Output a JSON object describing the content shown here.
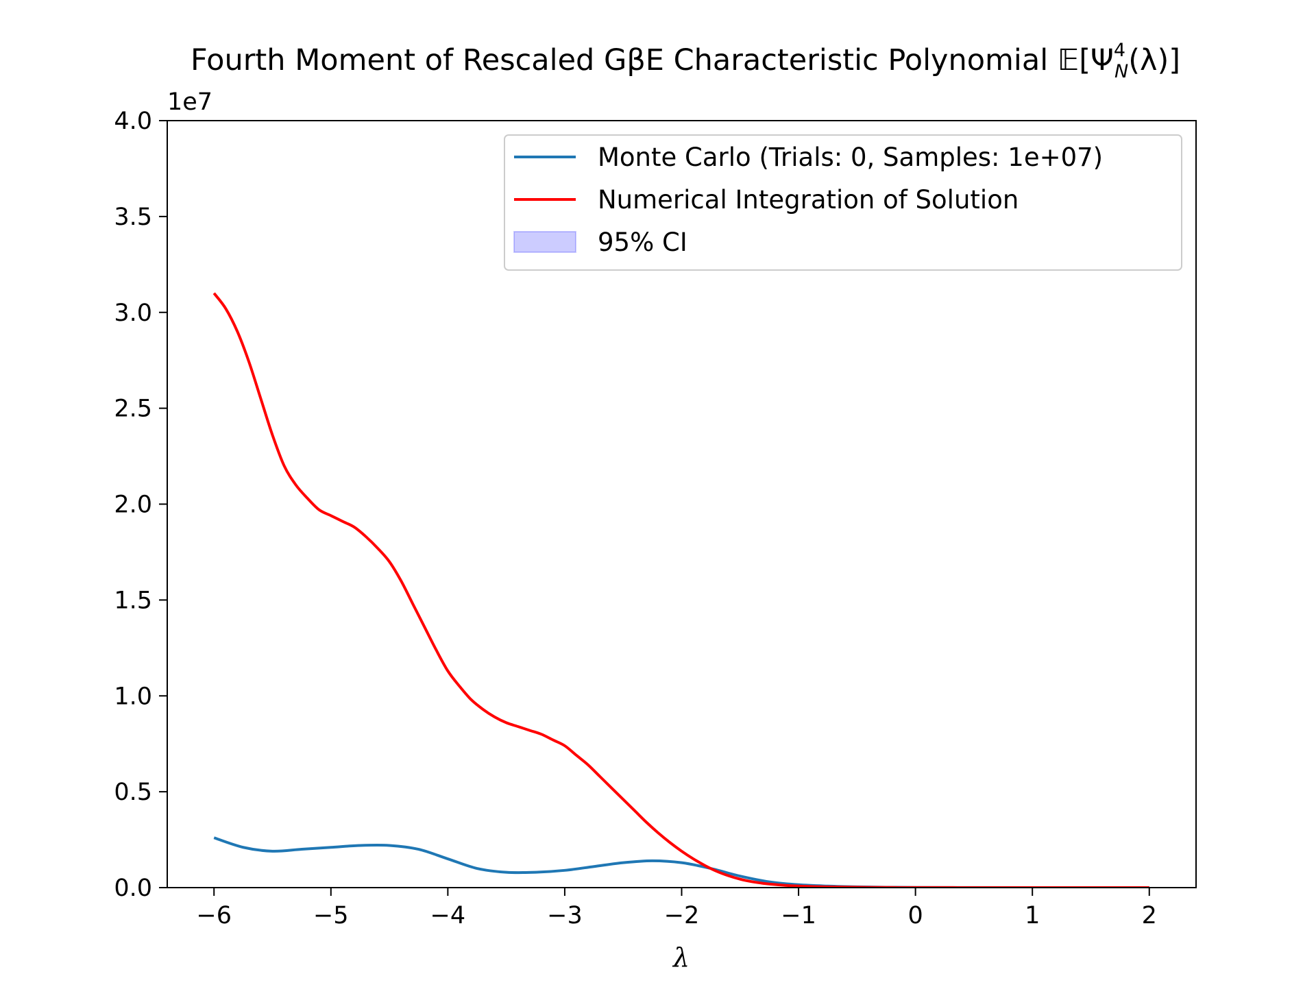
{
  "chart_data": {
    "type": "line",
    "title": "Fourth Moment of Rescaled GβE Characteristic Polynomial 𝔼[Ψ",
    "title_sup": "4",
    "title_sub": "N",
    "title_tail": "(λ)]",
    "xlabel": "λ",
    "ylabel": "",
    "y_offset_label": "1e7",
    "xlim": [
      -6.4,
      2.4
    ],
    "ylim": [
      0,
      40000000
    ],
    "x_ticks": [
      -6,
      -5,
      -4,
      -3,
      -2,
      -1,
      0,
      1,
      2
    ],
    "x_tick_labels": [
      "−6",
      "−5",
      "−4",
      "−3",
      "−2",
      "−1",
      "0",
      "1",
      "2"
    ],
    "y_ticks": [
      0,
      5000000,
      10000000,
      15000000,
      20000000,
      25000000,
      30000000,
      35000000,
      40000000
    ],
    "y_tick_labels": [
      "0.0",
      "0.5",
      "1.0",
      "1.5",
      "2.0",
      "2.5",
      "3.0",
      "3.5",
      "4.0"
    ],
    "grid": false,
    "legend_position": "top-right",
    "series": [
      {
        "name": "Monte Carlo (Trials: 0, Samples: 1e+07)",
        "color": "#1f77b4",
        "x": [
          -6,
          -5.75,
          -5.5,
          -5.25,
          -5,
          -4.75,
          -4.5,
          -4.25,
          -4,
          -3.75,
          -3.5,
          -3.25,
          -3,
          -2.75,
          -2.5,
          -2.25,
          -2,
          -1.75,
          -1.5,
          -1.25,
          -1,
          -0.75,
          -0.5,
          -0.25,
          0,
          0.5,
          1,
          1.5,
          2
        ],
        "y": [
          2600000,
          2100000,
          1900000,
          2000000,
          2100000,
          2200000,
          2200000,
          2000000,
          1500000,
          1000000,
          800000,
          800000,
          900000,
          1100000,
          1300000,
          1400000,
          1300000,
          1000000,
          600000,
          300000,
          150000,
          80000,
          40000,
          20000,
          10000,
          5000,
          2000,
          1000,
          500
        ]
      },
      {
        "name": "Numerical Integration of Solution",
        "color": "#ff0000",
        "x": [
          -6,
          -5.9,
          -5.8,
          -5.7,
          -5.6,
          -5.5,
          -5.4,
          -5.3,
          -5.2,
          -5.1,
          -5,
          -4.9,
          -4.8,
          -4.7,
          -4.6,
          -4.5,
          -4.4,
          -4.3,
          -4.2,
          -4.1,
          -4,
          -3.9,
          -3.8,
          -3.7,
          -3.6,
          -3.5,
          -3.4,
          -3.3,
          -3.2,
          -3.1,
          -3,
          -2.9,
          -2.8,
          -2.7,
          -2.6,
          -2.5,
          -2.4,
          -2.3,
          -2.2,
          -2.1,
          -2,
          -1.9,
          -1.8,
          -1.7,
          -1.6,
          -1.5,
          -1.4,
          -1.3,
          -1.2,
          -1.1,
          -1,
          -0.8,
          -0.6,
          -0.4,
          -0.2,
          0,
          0.5,
          1,
          1.5,
          2
        ],
        "y": [
          31000000,
          30200000,
          29000000,
          27400000,
          25500000,
          23600000,
          22000000,
          21000000,
          20300000,
          19700000,
          19400000,
          19100000,
          18800000,
          18300000,
          17700000,
          17000000,
          16000000,
          14800000,
          13600000,
          12400000,
          11300000,
          10500000,
          9800000,
          9300000,
          8900000,
          8600000,
          8400000,
          8200000,
          8000000,
          7700000,
          7400000,
          6900000,
          6400000,
          5800000,
          5200000,
          4600000,
          4000000,
          3400000,
          2850000,
          2350000,
          1900000,
          1500000,
          1150000,
          850000,
          620000,
          440000,
          310000,
          220000,
          160000,
          110000,
          80000,
          45000,
          25000,
          13000,
          7000,
          4000,
          1500,
          600,
          250,
          100
        ]
      },
      {
        "name": "95% CI",
        "color": "#0000ff",
        "kind": "fill"
      }
    ]
  }
}
